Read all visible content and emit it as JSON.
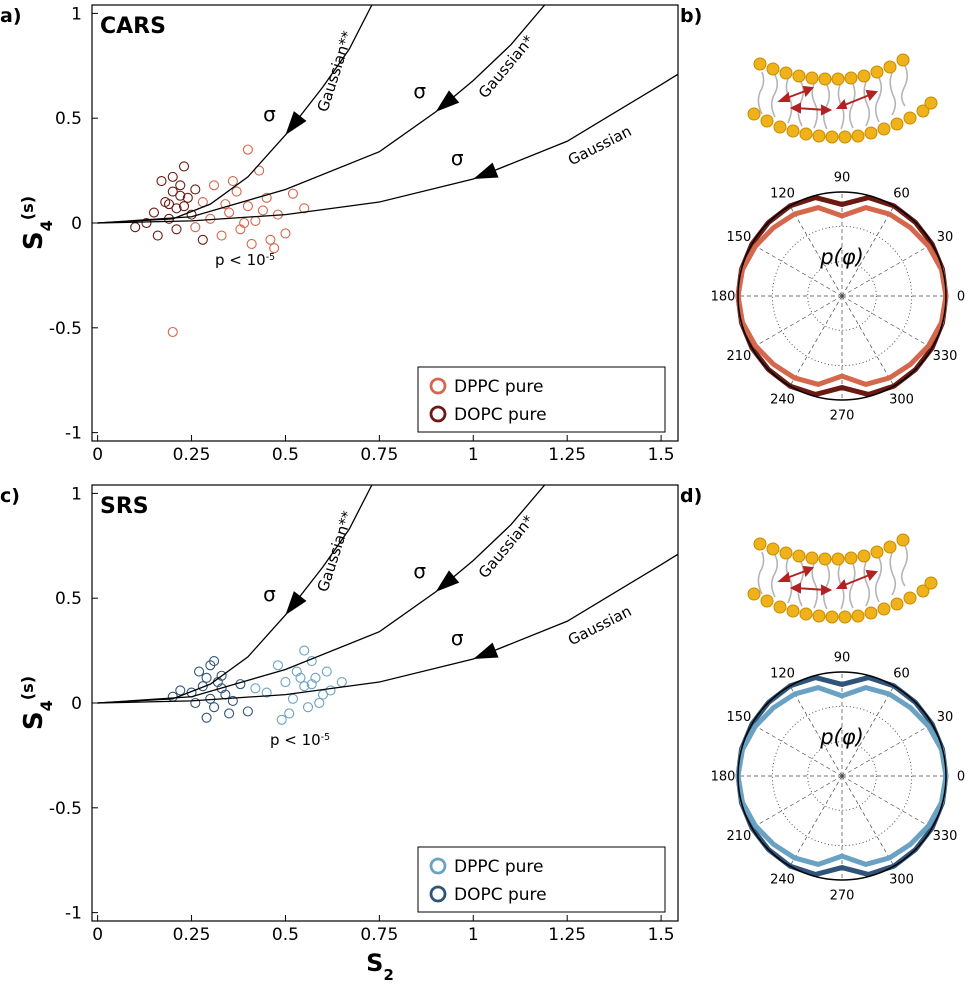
{
  "chart_data": [
    {
      "type": "scatter",
      "panel_label": "a)",
      "title": "CARS",
      "ylabel": {
        "main": "S",
        "sub": "4",
        "sup": "(s)"
      },
      "xlim": [
        -0.015,
        1.545
      ],
      "ylim": [
        -1.04,
        1.04
      ],
      "xticks": [
        0,
        0.25,
        0.5,
        0.75,
        1,
        1.25,
        1.5
      ],
      "yticks": [
        -1,
        -0.5,
        0,
        0.5,
        1
      ],
      "legend": "lower right",
      "series": [
        {
          "name": "DPPC pure",
          "color": "#d4674c",
          "x": [
            0.3,
            0.35,
            0.38,
            0.4,
            0.42,
            0.45,
            0.33,
            0.37,
            0.48,
            0.28,
            0.5,
            0.36,
            0.41,
            0.44,
            0.39,
            0.52,
            0.26,
            0.46,
            0.34,
            0.43,
            0.55,
            0.31,
            0.47,
            0.4,
            0.2
          ],
          "values": [
            0.02,
            0.05,
            -0.03,
            0.08,
            0.01,
            0.12,
            -0.06,
            0.15,
            0.04,
            0.1,
            -0.05,
            0.2,
            -0.1,
            0.06,
            0.0,
            0.14,
            -0.02,
            -0.08,
            0.09,
            0.25,
            0.07,
            0.18,
            -0.12,
            0.35,
            -0.52
          ]
        },
        {
          "name": "DOPC pure",
          "color": "#6b1a12",
          "x": [
            0.15,
            0.18,
            0.2,
            0.22,
            0.24,
            0.19,
            0.21,
            0.23,
            0.17,
            0.25,
            0.13,
            0.2,
            0.22,
            0.16,
            0.26,
            0.21,
            0.1,
            0.28,
            0.19,
            0.23
          ],
          "values": [
            0.05,
            0.1,
            0.15,
            0.18,
            0.12,
            0.02,
            -0.03,
            0.08,
            0.2,
            0.04,
            0.0,
            0.22,
            0.13,
            -0.06,
            0.16,
            0.07,
            -0.02,
            -0.08,
            0.09,
            0.27
          ]
        }
      ],
      "curves": [
        {
          "name": "Gaussian**",
          "marker_label": "σ",
          "x": [
            0,
            0.2,
            0.3,
            0.4,
            0.5,
            0.6,
            0.67,
            0.73
          ],
          "values": [
            0,
            0.02,
            0.09,
            0.22,
            0.42,
            0.65,
            0.83,
            1.04
          ]
        },
        {
          "name": "Gaussian*",
          "marker_label": "σ",
          "x": [
            0,
            0.25,
            0.5,
            0.75,
            0.9,
            1,
            1.1,
            1.19
          ],
          "values": [
            0,
            0.03,
            0.16,
            0.34,
            0.53,
            0.68,
            0.85,
            1.04
          ]
        },
        {
          "name": "Gaussian",
          "marker_label": "σ",
          "x": [
            0,
            0.25,
            0.5,
            0.75,
            1,
            1.25,
            1.5,
            1.545
          ],
          "values": [
            0,
            0.01,
            0.04,
            0.1,
            0.21,
            0.39,
            0.66,
            0.71
          ]
        }
      ],
      "annotation": {
        "text": "p < 10",
        "sup": "-5"
      }
    },
    {
      "type": "polar",
      "panel_label": "b)",
      "annotation": "p(φ)",
      "rlim": [
        0,
        1
      ],
      "rgrid": [
        0.33,
        0.67
      ],
      "angle_ticks": [
        0,
        30,
        60,
        90,
        120,
        150,
        180,
        210,
        240,
        270,
        300,
        330
      ],
      "theta": [
        0,
        15,
        30,
        45,
        60,
        75,
        90,
        105,
        120,
        135,
        150,
        165,
        180,
        195,
        210,
        225,
        240,
        255,
        270,
        285,
        300,
        315,
        330,
        345
      ],
      "series": [
        {
          "color": "#6b1a12",
          "values": [
            1.0,
            1.0,
            1.0,
            1.0,
            1.0,
            0.98,
            0.88,
            0.98,
            1.0,
            1.0,
            1.0,
            1.0,
            1.0,
            1.0,
            1.0,
            1.0,
            1.0,
            0.98,
            0.88,
            0.98,
            1.0,
            1.0,
            1.0,
            1.0
          ]
        },
        {
          "color": "#d4674c",
          "values": [
            1.0,
            0.99,
            0.96,
            0.93,
            0.91,
            0.88,
            0.77,
            0.88,
            0.91,
            0.93,
            0.96,
            0.99,
            1.0,
            0.99,
            0.96,
            0.93,
            0.91,
            0.88,
            0.77,
            0.88,
            0.91,
            0.93,
            0.96,
            0.99
          ]
        }
      ]
    },
    {
      "type": "scatter",
      "panel_label": "c)",
      "title": "SRS",
      "ylabel": {
        "main": "S",
        "sub": "4",
        "sup": "(s)"
      },
      "xlabel": {
        "main": "S",
        "sub": "2"
      },
      "xlim": [
        -0.015,
        1.545
      ],
      "ylim": [
        -1.04,
        1.04
      ],
      "xticks": [
        0,
        0.25,
        0.5,
        0.75,
        1,
        1.25,
        1.5
      ],
      "yticks": [
        -1,
        -0.5,
        0,
        0.5,
        1
      ],
      "legend": "lower right",
      "series": [
        {
          "name": "DPPC pure",
          "color": "#6aa2c4",
          "x": [
            0.45,
            0.5,
            0.52,
            0.55,
            0.58,
            0.6,
            0.53,
            0.56,
            0.48,
            0.62,
            0.57,
            0.51,
            0.54,
            0.65,
            0.59,
            0.42,
            0.55,
            0.61,
            0.49,
            0.57
          ],
          "values": [
            0.05,
            0.1,
            0.02,
            0.08,
            0.12,
            0.04,
            0.15,
            -0.02,
            0.18,
            0.06,
            0.2,
            -0.05,
            0.12,
            0.1,
            0.0,
            0.07,
            0.25,
            0.15,
            -0.08,
            0.09
          ]
        },
        {
          "name": "DOPC pure",
          "color": "#2f5479",
          "x": [
            0.25,
            0.28,
            0.3,
            0.32,
            0.34,
            0.29,
            0.31,
            0.27,
            0.33,
            0.36,
            0.22,
            0.3,
            0.35,
            0.26,
            0.38,
            0.31,
            0.2,
            0.4,
            0.29,
            0.33
          ],
          "values": [
            0.05,
            0.08,
            0.02,
            0.1,
            0.04,
            0.12,
            -0.02,
            0.15,
            0.07,
            0.01,
            0.06,
            0.18,
            -0.05,
            0.0,
            0.09,
            0.2,
            0.03,
            -0.04,
            -0.07,
            0.13
          ]
        }
      ],
      "curves": [
        {
          "name": "Gaussian**",
          "marker_label": "σ",
          "x": [
            0,
            0.2,
            0.3,
            0.4,
            0.5,
            0.6,
            0.67,
            0.73
          ],
          "values": [
            0,
            0.02,
            0.09,
            0.22,
            0.42,
            0.65,
            0.83,
            1.04
          ]
        },
        {
          "name": "Gaussian*",
          "marker_label": "σ",
          "x": [
            0,
            0.25,
            0.5,
            0.75,
            0.9,
            1,
            1.1,
            1.19
          ],
          "values": [
            0,
            0.03,
            0.16,
            0.34,
            0.53,
            0.68,
            0.85,
            1.04
          ]
        },
        {
          "name": "Gaussian",
          "marker_label": "σ",
          "x": [
            0,
            0.25,
            0.5,
            0.75,
            1,
            1.25,
            1.5,
            1.545
          ],
          "values": [
            0,
            0.01,
            0.04,
            0.1,
            0.21,
            0.39,
            0.66,
            0.71
          ]
        }
      ],
      "annotation": {
        "text": "p < 10",
        "sup": "-5"
      }
    },
    {
      "type": "polar",
      "panel_label": "d)",
      "annotation": "p(φ)",
      "rlim": [
        0,
        1
      ],
      "rgrid": [
        0.33,
        0.67
      ],
      "angle_ticks": [
        0,
        30,
        60,
        90,
        120,
        150,
        180,
        210,
        240,
        270,
        300,
        330
      ],
      "theta": [
        0,
        15,
        30,
        45,
        60,
        75,
        90,
        105,
        120,
        135,
        150,
        165,
        180,
        195,
        210,
        225,
        240,
        255,
        270,
        285,
        300,
        315,
        330,
        345
      ],
      "series": [
        {
          "color": "#2f5479",
          "values": [
            1.0,
            1.0,
            1.0,
            1.0,
            1.0,
            0.98,
            0.88,
            0.98,
            1.0,
            1.0,
            1.0,
            1.0,
            1.0,
            1.0,
            1.0,
            1.0,
            1.0,
            0.98,
            0.88,
            0.98,
            1.0,
            1.0,
            1.0,
            1.0
          ]
        },
        {
          "color": "#6aa2c4",
          "values": [
            1.0,
            0.99,
            0.96,
            0.93,
            0.91,
            0.88,
            0.77,
            0.88,
            0.91,
            0.93,
            0.96,
            0.99,
            1.0,
            0.99,
            0.96,
            0.93,
            0.91,
            0.88,
            0.77,
            0.88,
            0.91,
            0.93,
            0.96,
            0.99
          ]
        }
      ]
    }
  ]
}
